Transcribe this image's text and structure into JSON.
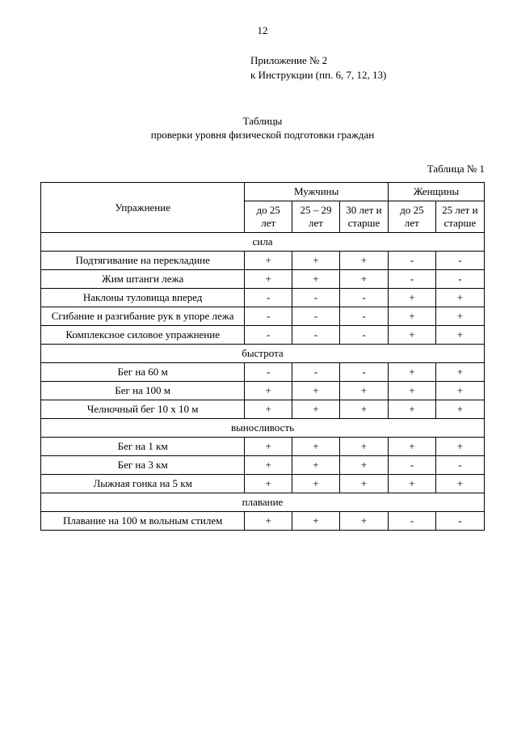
{
  "page_number": "12",
  "appendix_line1": "Приложение № 2",
  "appendix_line2": "к Инструкции (пп. 6, 7, 12, 13)",
  "title_line1": "Таблицы",
  "title_line2": "проверки уровня физической подготовки граждан",
  "table_label": "Таблица № 1",
  "columns": {
    "exercise": "Упражнение",
    "men": "Мужчины",
    "women": "Женщины",
    "m1": "до 25 лет",
    "m2": "25 – 29 лет",
    "m3": "30 лет и старше",
    "w1": "до 25 лет",
    "w2": "25 лет и старше"
  },
  "sections": {
    "s1": "сила",
    "s2": "быстрота",
    "s3": "выносливость",
    "s4": "плавание"
  },
  "rows": {
    "r1": {
      "ex": "Подтягивание на перекладине",
      "m1": "+",
      "m2": "+",
      "m3": "+",
      "w1": "-",
      "w2": "-"
    },
    "r2": {
      "ex": "Жим штанги лежа",
      "m1": "+",
      "m2": "+",
      "m3": "+",
      "w1": "-",
      "w2": "-"
    },
    "r3": {
      "ex": "Наклоны туловища вперед",
      "m1": "-",
      "m2": "-",
      "m3": "-",
      "w1": "+",
      "w2": "+"
    },
    "r4": {
      "ex": "Сгибание и разгибание рук в упоре лежа",
      "m1": "-",
      "m2": "-",
      "m3": "-",
      "w1": "+",
      "w2": "+"
    },
    "r5": {
      "ex": "Комплексное силовое упражнение",
      "m1": "-",
      "m2": "-",
      "m3": "-",
      "w1": "+",
      "w2": "+"
    },
    "r6": {
      "ex": "Бег на 60 м",
      "m1": "-",
      "m2": "-",
      "m3": "-",
      "w1": "+",
      "w2": "+"
    },
    "r7": {
      "ex": "Бег на 100 м",
      "m1": "+",
      "m2": "+",
      "m3": "+",
      "w1": "+",
      "w2": "+"
    },
    "r8": {
      "ex": "Челночный бег 10 х 10 м",
      "m1": "+",
      "m2": "+",
      "m3": "+",
      "w1": "+",
      "w2": "+"
    },
    "r9": {
      "ex": "Бег на 1 км",
      "m1": "+",
      "m2": "+",
      "m3": "+",
      "w1": "+",
      "w2": "+"
    },
    "r10": {
      "ex": "Бег на 3 км",
      "m1": "+",
      "m2": "+",
      "m3": "+",
      "w1": "-",
      "w2": "-"
    },
    "r11": {
      "ex": "Лыжная гонка на 5 км",
      "m1": "+",
      "m2": "+",
      "m3": "+",
      "w1": "+",
      "w2": "+"
    },
    "r12": {
      "ex": "Плавание на 100 м вольным стилем",
      "m1": "+",
      "m2": "+",
      "m3": "+",
      "w1": "-",
      "w2": "-"
    }
  }
}
